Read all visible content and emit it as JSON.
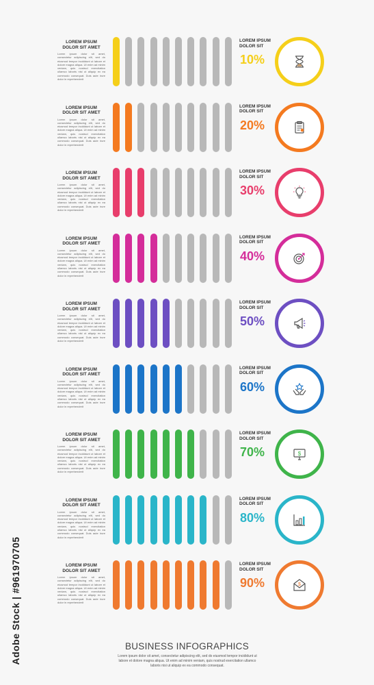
{
  "watermark": "Adobe Stock | #961970705",
  "bars_per_row": 10,
  "inactive_color": "#b8b8b8",
  "rows": [
    {
      "title": "LOREM IPSUM DOLOR SIT AMET",
      "body": "Lorem ipsum dolor sit amet, consectetur adipiscing elit, sed do eiusmod tempor incididunt ut labore et dolore magna aliqua. Ut enim ad minim veniam, quis nostrud exercitation ullamco laboris nisi ut aliquip ex ea commodo consequat. Duis aute irure dolor in reprehenderit",
      "label": "LOREM IPSUM DOLOR SIT",
      "percent": "10%",
      "value": 10,
      "color": "#f5cf1a",
      "icon": "hourglass-icon"
    },
    {
      "title": "LOREM IPSUM DOLOR SIT AMET",
      "body": "Lorem ipsum dolor sit amet, consectetur adipiscing elit, sed do eiusmod tempor incididunt ut labore et dolore magna aliqua. Ut enim ad minim veniam, quis nostrud exercitation ullamco laboris nisi ut aliquip ex ea commodo consequat. Duis aute irure dolor in reprehenderit",
      "label": "LOREM IPSUM DOLOR SIT",
      "percent": "20%",
      "value": 20,
      "color": "#f47a20",
      "icon": "clipboard-icon"
    },
    {
      "title": "LOREM IPSUM DOLOR SIT AMET",
      "body": "Lorem ipsum dolor sit amet, consectetur adipiscing elit, sed do eiusmod tempor incididunt ut labore et dolore magna aliqua. Ut enim ad minim veniam, quis nostrud exercitation ullamco laboris nisi ut aliquip ex ea commodo consequat. Duis aute irure dolor in reprehenderit",
      "label": "LOREM IPSUM DOLOR SIT",
      "percent": "30%",
      "value": 30,
      "color": "#e83e6c",
      "icon": "lightbulb-icon"
    },
    {
      "title": "LOREM IPSUM DOLOR SIT AMET",
      "body": "Lorem ipsum dolor sit amet, consectetur adipiscing elit, sed do eiusmod tempor incididunt ut labore et dolore magna aliqua. Ut enim ad minim veniam, quis nostrud exercitation ullamco laboris nisi ut aliquip ex ea commodo consequat. Duis aute irure dolor in reprehenderit",
      "label": "LOREM IPSUM DOLOR SIT",
      "percent": "40%",
      "value": 40,
      "color": "#d42d9a",
      "icon": "target-icon"
    },
    {
      "title": "LOREM IPSUM DOLOR SIT AMET",
      "body": "Lorem ipsum dolor sit amet, consectetur adipiscing elit, sed do eiusmod tempor incididunt ut labore et dolore magna aliqua. Ut enim ad minim veniam, quis nostrud exercitation ullamco laboris nisi ut aliquip ex ea commodo consequat. Duis aute irure dolor in reprehenderit",
      "label": "LOREM IPSUM DOLOR SIT",
      "percent": "50%",
      "value": 50,
      "color": "#6d4fc2",
      "icon": "megaphone-icon"
    },
    {
      "title": "LOREM IPSUM DOLOR SIT AMET",
      "body": "Lorem ipsum dolor sit amet, consectetur adipiscing elit, sed do eiusmod tempor incididunt ut labore et dolore magna aliqua. Ut enim ad minim veniam, quis nostrud exercitation ullamco laboris nisi ut aliquip ex ea commodo consequat. Duis aute irure dolor in reprehenderit",
      "label": "LOREM IPSUM DOLOR SIT",
      "percent": "60%",
      "value": 60,
      "color": "#1c75c8",
      "icon": "hands-star-icon"
    },
    {
      "title": "LOREM IPSUM DOLOR SIT AMET",
      "body": "Lorem ipsum dolor sit amet, consectetur adipiscing elit, sed do eiusmod tempor incididunt ut labore et dolore magna aliqua. Ut enim ad minim veniam, quis nostrud exercitation ullamco laboris nisi ut aliquip ex ea commodo consequat. Duis aute irure dolor in reprehenderit",
      "label": "LOREM IPSUM DOLOR SIT",
      "percent": "70%",
      "value": 70,
      "color": "#3fb44a",
      "icon": "monitor-dollar-icon"
    },
    {
      "title": "LOREM IPSUM DOLOR SIT AMET",
      "body": "Lorem ipsum dolor sit amet, consectetur adipiscing elit, sed do eiusmod tempor incididunt ut labore et dolore magna aliqua. Ut enim ad minim veniam, quis nostrud exercitation ullamco laboris nisi ut aliquip ex ea commodo consequat. Duis aute irure dolor in reprehenderit",
      "label": "LOREM IPSUM DOLOR SIT",
      "percent": "80%",
      "value": 80,
      "color": "#2ab5c9",
      "icon": "bar-chart-icon"
    },
    {
      "title": "LOREM IPSUM DOLOR SIT AMET",
      "body": "Lorem ipsum dolor sit amet, consectetur adipiscing elit, sed do eiusmod tempor incididunt ut labore et dolore magna aliqua. Ut enim ad minim veniam, quis nostrud exercitation ullamco laboris nisi ut aliquip ex ea commodo consequat. Duis aute irure dolor in reprehenderit",
      "label": "LOREM IPSUM DOLOR SIT",
      "percent": "90%",
      "value": 90,
      "color": "#ef7a30",
      "icon": "envelope-dollar-icon"
    }
  ],
  "footer": {
    "title": "BUSINESS INFOGRAPHICS",
    "body": "Lorem ipsum dolor sit amet, consectetur adipiscing elit, sed do eiusmod tempor incididunt ut labore et dolore magna aliqua. Ut enim ad minim veniam, quis nostrud exercitation ullamco laboris nisi ut aliquip ex ea commodo consequat."
  }
}
